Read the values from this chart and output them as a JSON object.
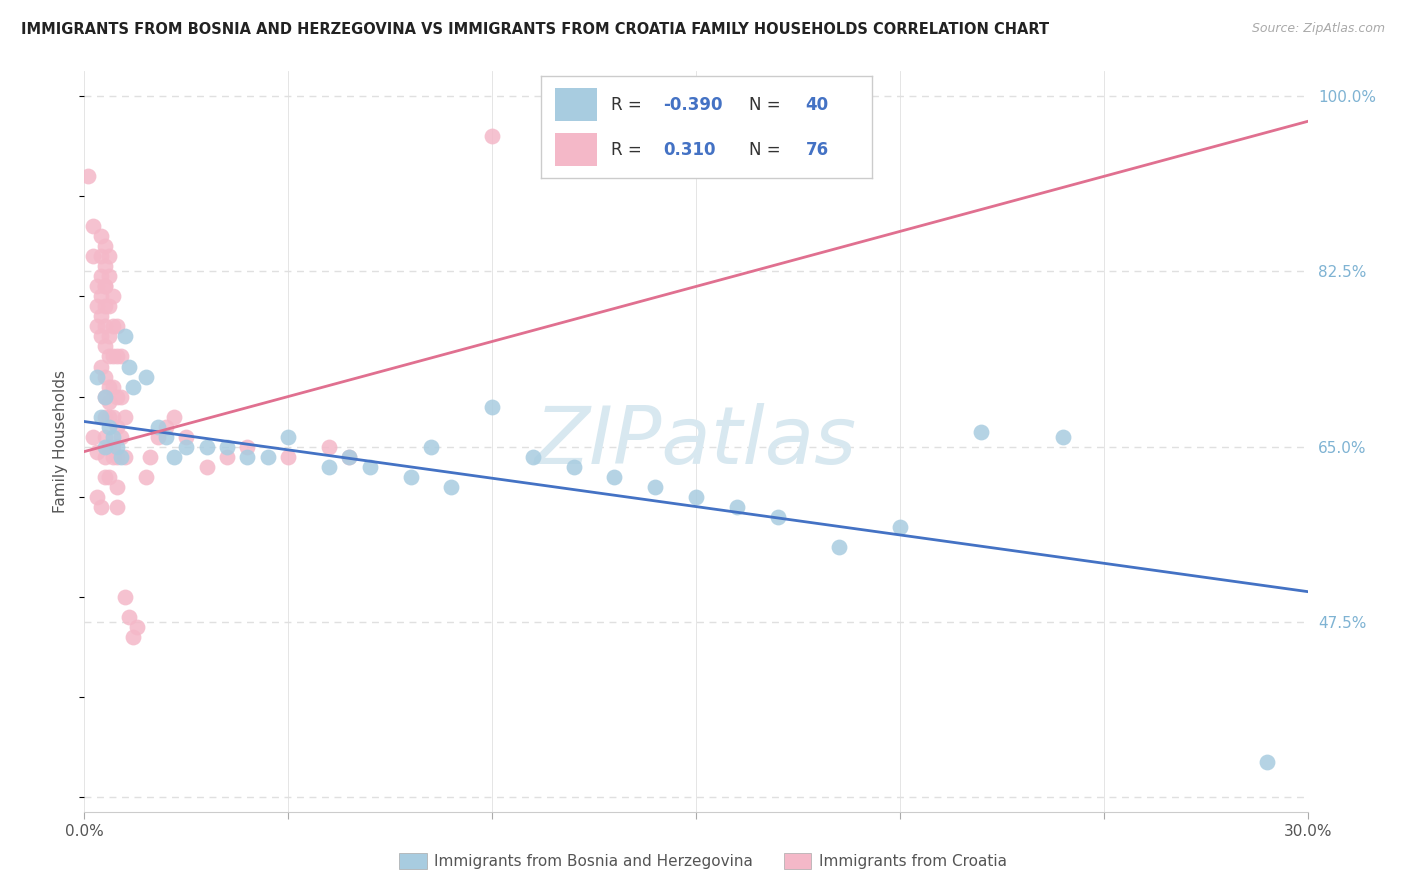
{
  "title": "IMMIGRANTS FROM BOSNIA AND HERZEGOVINA VS IMMIGRANTS FROM CROATIA FAMILY HOUSEHOLDS CORRELATION CHART",
  "source": "Source: ZipAtlas.com",
  "xlabel_blue": "Immigrants from Bosnia and Herzegovina",
  "xlabel_pink": "Immigrants from Croatia",
  "ylabel": "Family Households",
  "xlim": [
    0.0,
    0.3
  ],
  "ylim": [
    0.285,
    1.025
  ],
  "R_blue": -0.39,
  "N_blue": 40,
  "R_pink": 0.31,
  "N_pink": 76,
  "blue_color": "#a8cce0",
  "pink_color": "#f4b8c8",
  "blue_line_color": "#4472c4",
  "pink_line_color": "#e07090",
  "blue_scatter": [
    [
      0.003,
      0.72
    ],
    [
      0.004,
      0.68
    ],
    [
      0.005,
      0.7
    ],
    [
      0.005,
      0.65
    ],
    [
      0.006,
      0.67
    ],
    [
      0.007,
      0.66
    ],
    [
      0.008,
      0.65
    ],
    [
      0.009,
      0.64
    ],
    [
      0.01,
      0.76
    ],
    [
      0.011,
      0.73
    ],
    [
      0.012,
      0.71
    ],
    [
      0.015,
      0.72
    ],
    [
      0.018,
      0.67
    ],
    [
      0.02,
      0.66
    ],
    [
      0.022,
      0.64
    ],
    [
      0.025,
      0.65
    ],
    [
      0.03,
      0.65
    ],
    [
      0.035,
      0.65
    ],
    [
      0.04,
      0.64
    ],
    [
      0.045,
      0.64
    ],
    [
      0.05,
      0.66
    ],
    [
      0.06,
      0.63
    ],
    [
      0.065,
      0.64
    ],
    [
      0.07,
      0.63
    ],
    [
      0.08,
      0.62
    ],
    [
      0.085,
      0.65
    ],
    [
      0.09,
      0.61
    ],
    [
      0.1,
      0.69
    ],
    [
      0.11,
      0.64
    ],
    [
      0.12,
      0.63
    ],
    [
      0.13,
      0.62
    ],
    [
      0.14,
      0.61
    ],
    [
      0.15,
      0.6
    ],
    [
      0.16,
      0.59
    ],
    [
      0.17,
      0.58
    ],
    [
      0.185,
      0.55
    ],
    [
      0.2,
      0.57
    ],
    [
      0.22,
      0.665
    ],
    [
      0.24,
      0.66
    ],
    [
      0.29,
      0.335
    ]
  ],
  "pink_scatter": [
    [
      0.001,
      0.92
    ],
    [
      0.002,
      0.87
    ],
    [
      0.002,
      0.84
    ],
    [
      0.003,
      0.81
    ],
    [
      0.003,
      0.79
    ],
    [
      0.003,
      0.77
    ],
    [
      0.004,
      0.86
    ],
    [
      0.004,
      0.84
    ],
    [
      0.004,
      0.82
    ],
    [
      0.004,
      0.8
    ],
    [
      0.004,
      0.78
    ],
    [
      0.004,
      0.76
    ],
    [
      0.005,
      0.85
    ],
    [
      0.005,
      0.83
    ],
    [
      0.005,
      0.81
    ],
    [
      0.005,
      0.79
    ],
    [
      0.005,
      0.77
    ],
    [
      0.005,
      0.75
    ],
    [
      0.005,
      0.72
    ],
    [
      0.005,
      0.7
    ],
    [
      0.005,
      0.68
    ],
    [
      0.005,
      0.66
    ],
    [
      0.005,
      0.64
    ],
    [
      0.005,
      0.62
    ],
    [
      0.006,
      0.84
    ],
    [
      0.006,
      0.82
    ],
    [
      0.006,
      0.79
    ],
    [
      0.006,
      0.76
    ],
    [
      0.006,
      0.74
    ],
    [
      0.006,
      0.71
    ],
    [
      0.006,
      0.68
    ],
    [
      0.006,
      0.65
    ],
    [
      0.006,
      0.62
    ],
    [
      0.007,
      0.8
    ],
    [
      0.007,
      0.77
    ],
    [
      0.007,
      0.74
    ],
    [
      0.007,
      0.71
    ],
    [
      0.007,
      0.68
    ],
    [
      0.007,
      0.65
    ],
    [
      0.008,
      0.77
    ],
    [
      0.008,
      0.74
    ],
    [
      0.008,
      0.7
    ],
    [
      0.008,
      0.67
    ],
    [
      0.008,
      0.64
    ],
    [
      0.008,
      0.61
    ],
    [
      0.009,
      0.74
    ],
    [
      0.009,
      0.7
    ],
    [
      0.009,
      0.66
    ],
    [
      0.01,
      0.68
    ],
    [
      0.01,
      0.64
    ],
    [
      0.01,
      0.5
    ],
    [
      0.011,
      0.48
    ],
    [
      0.012,
      0.46
    ],
    [
      0.013,
      0.47
    ],
    [
      0.015,
      0.62
    ],
    [
      0.016,
      0.64
    ],
    [
      0.018,
      0.66
    ],
    [
      0.02,
      0.67
    ],
    [
      0.022,
      0.68
    ],
    [
      0.025,
      0.66
    ],
    [
      0.03,
      0.63
    ],
    [
      0.035,
      0.64
    ],
    [
      0.04,
      0.65
    ],
    [
      0.05,
      0.64
    ],
    [
      0.06,
      0.65
    ],
    [
      0.065,
      0.64
    ],
    [
      0.1,
      0.96
    ],
    [
      0.002,
      0.66
    ],
    [
      0.003,
      0.645
    ],
    [
      0.004,
      0.73
    ],
    [
      0.005,
      0.81
    ],
    [
      0.006,
      0.695
    ],
    [
      0.007,
      0.64
    ],
    [
      0.008,
      0.59
    ],
    [
      0.003,
      0.6
    ],
    [
      0.004,
      0.59
    ]
  ],
  "blue_trendline": [
    0.0,
    0.675,
    0.3,
    0.505
  ],
  "pink_trendline": [
    0.0,
    0.645,
    0.3,
    0.975
  ],
  "watermark": "ZIPatlas",
  "background_color": "#ffffff",
  "grid_color": "#e0e0e0",
  "ytick_pos": [
    1.0,
    0.825,
    0.65,
    0.475
  ],
  "ytick_labels": [
    "100.0%",
    "82.5%",
    "65.0%",
    "47.5%"
  ],
  "ytick_color": "#7fb3d3"
}
